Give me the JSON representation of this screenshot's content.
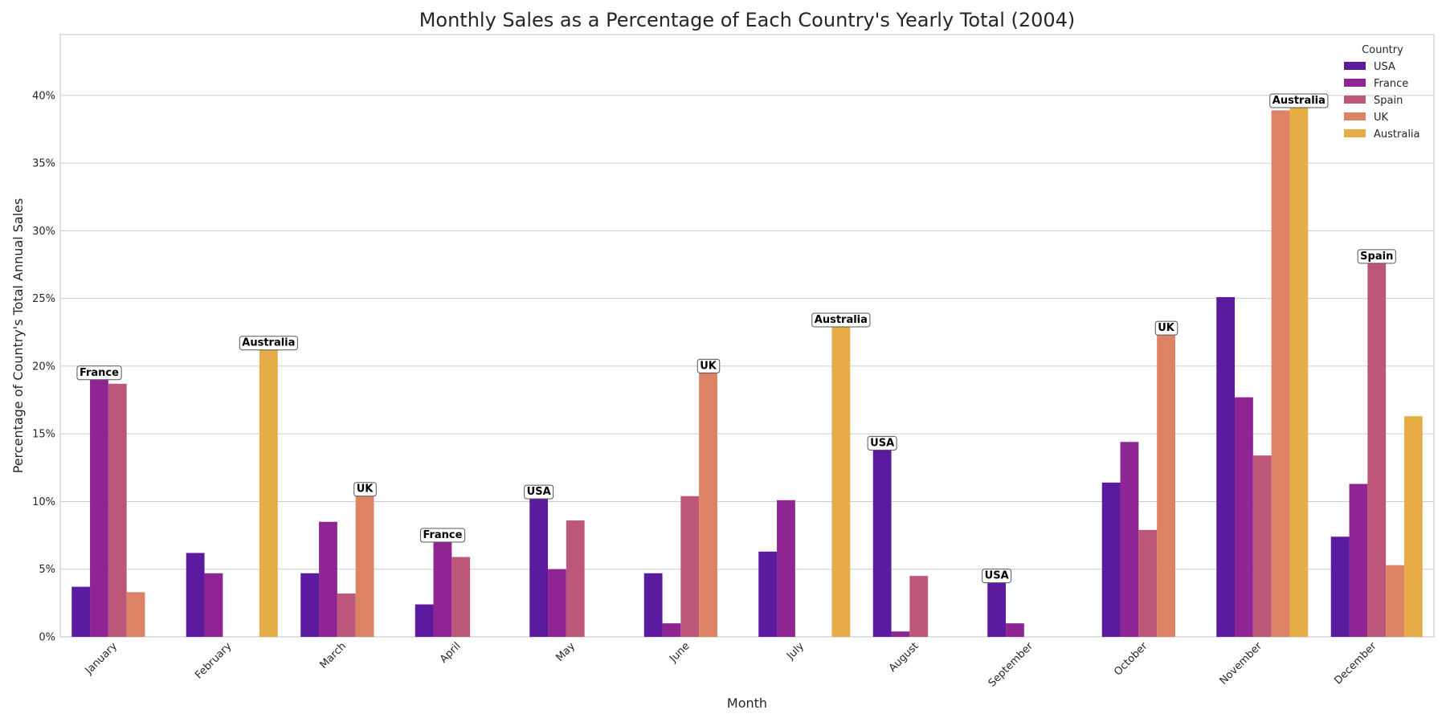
{
  "chart_data": {
    "type": "bar",
    "title": "Monthly Sales as a Percentage of Each Country's Yearly Total (2004)",
    "xlabel": "Month",
    "ylabel": "Percentage of Country's Total Annual Sales",
    "ylim": [
      0,
      44.5
    ],
    "yticks": [
      0,
      5,
      10,
      15,
      20,
      25,
      30,
      35,
      40
    ],
    "ytick_labels": [
      "0%",
      "5%",
      "10%",
      "15%",
      "20%",
      "25%",
      "30%",
      "35%",
      "40%"
    ],
    "grid": "horizontal",
    "legend": {
      "title": "Country",
      "placement": "top-right"
    },
    "categories": [
      "January",
      "February",
      "March",
      "April",
      "May",
      "June",
      "July",
      "August",
      "September",
      "October",
      "November",
      "December"
    ],
    "series": [
      {
        "name": "USA",
        "color": "#5c1a9e",
        "values": [
          3.7,
          6.2,
          4.7,
          2.4,
          10.2,
          4.7,
          6.3,
          13.8,
          4.0,
          11.4,
          25.1,
          7.4
        ]
      },
      {
        "name": "France",
        "color": "#8e2592",
        "values": [
          19.0,
          4.7,
          8.5,
          7.0,
          5.0,
          1.0,
          10.1,
          0.4,
          1.0,
          14.4,
          17.7,
          11.3
        ]
      },
      {
        "name": "Spain",
        "color": "#bd5779",
        "values": [
          18.7,
          null,
          3.2,
          5.9,
          8.6,
          10.4,
          null,
          4.5,
          null,
          7.9,
          13.4,
          27.6
        ]
      },
      {
        "name": "UK",
        "color": "#dc8365",
        "values": [
          3.3,
          null,
          10.4,
          null,
          null,
          19.5,
          null,
          null,
          null,
          22.3,
          38.9,
          5.3
        ]
      },
      {
        "name": "Australia",
        "color": "#e6ac47",
        "values": [
          null,
          21.2,
          null,
          null,
          null,
          null,
          22.9,
          null,
          null,
          null,
          39.1,
          16.3
        ]
      }
    ],
    "top_labels": [
      {
        "category": "January",
        "series": "France",
        "text": "France"
      },
      {
        "category": "February",
        "series": "Australia",
        "text": "Australia"
      },
      {
        "category": "March",
        "series": "UK",
        "text": "UK"
      },
      {
        "category": "April",
        "series": "France",
        "text": "France"
      },
      {
        "category": "May",
        "series": "USA",
        "text": "USA"
      },
      {
        "category": "June",
        "series": "UK",
        "text": "UK"
      },
      {
        "category": "July",
        "series": "Australia",
        "text": "Australia"
      },
      {
        "category": "August",
        "series": "USA",
        "text": "USA"
      },
      {
        "category": "September",
        "series": "USA",
        "text": "USA"
      },
      {
        "category": "October",
        "series": "UK",
        "text": "UK"
      },
      {
        "category": "November",
        "series": "Australia",
        "text": "Australia"
      },
      {
        "category": "December",
        "series": "Spain",
        "text": "Spain"
      }
    ]
  }
}
